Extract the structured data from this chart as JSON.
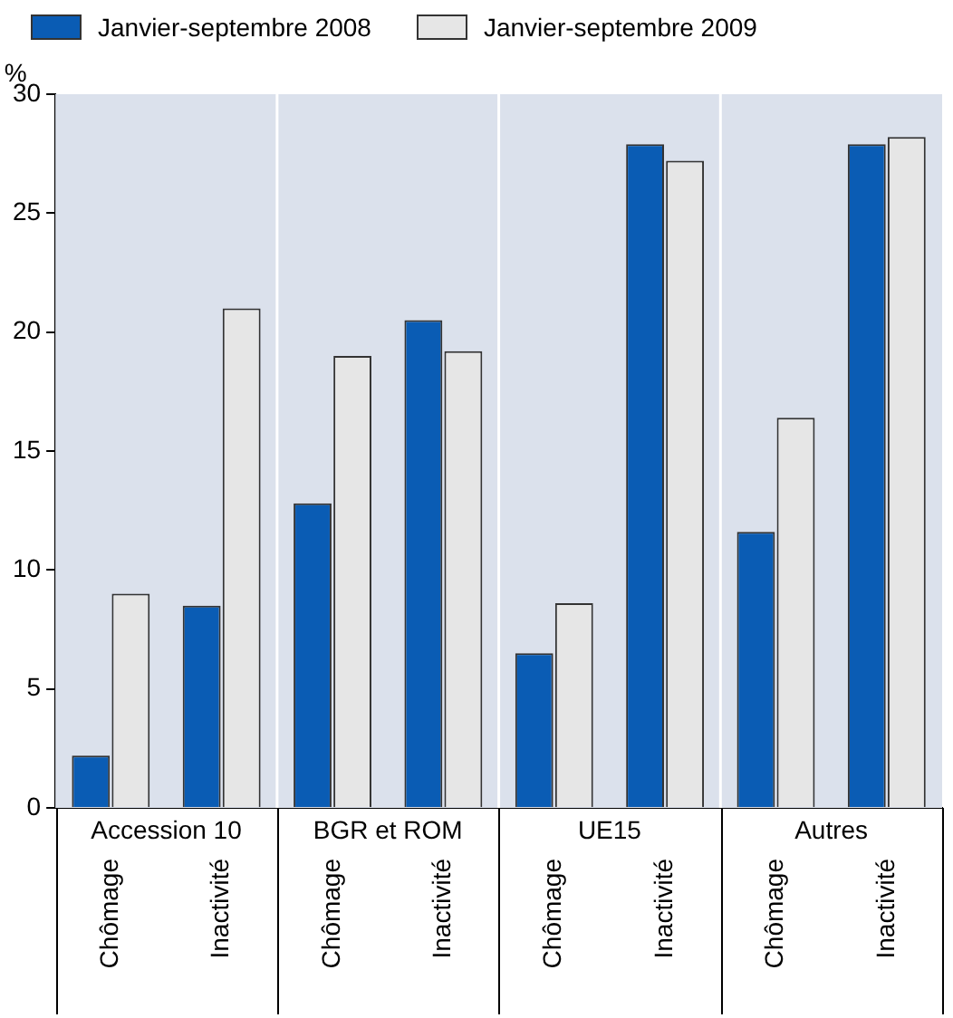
{
  "chart_data": {
    "type": "bar",
    "ylabel": "%",
    "categories": [
      "Chômage",
      "Inactivité",
      "Chômage",
      "Inactivité",
      "Chômage",
      "Inactivité",
      "Chômage",
      "Inactivité"
    ],
    "annotations": [
      "Accession 10",
      "BGR et ROM",
      "UE15",
      "Autres"
    ],
    "series": [
      {
        "name": "Janvier-septembre 2008",
        "color": "#0a5cb4",
        "values": [
          2.2,
          8.5,
          12.8,
          20.5,
          6.5,
          27.9,
          11.6,
          27.9
        ]
      },
      {
        "name": "Janvier-septembre 2009",
        "color": "#e6e6e6",
        "values": [
          9.0,
          21.0,
          19.0,
          19.2,
          8.6,
          27.2,
          16.4,
          28.2
        ]
      }
    ],
    "ylim": [
      0,
      30
    ],
    "yticks": [
      0,
      5,
      10,
      15,
      20,
      25,
      30
    ],
    "grid": false,
    "legend": "top"
  }
}
